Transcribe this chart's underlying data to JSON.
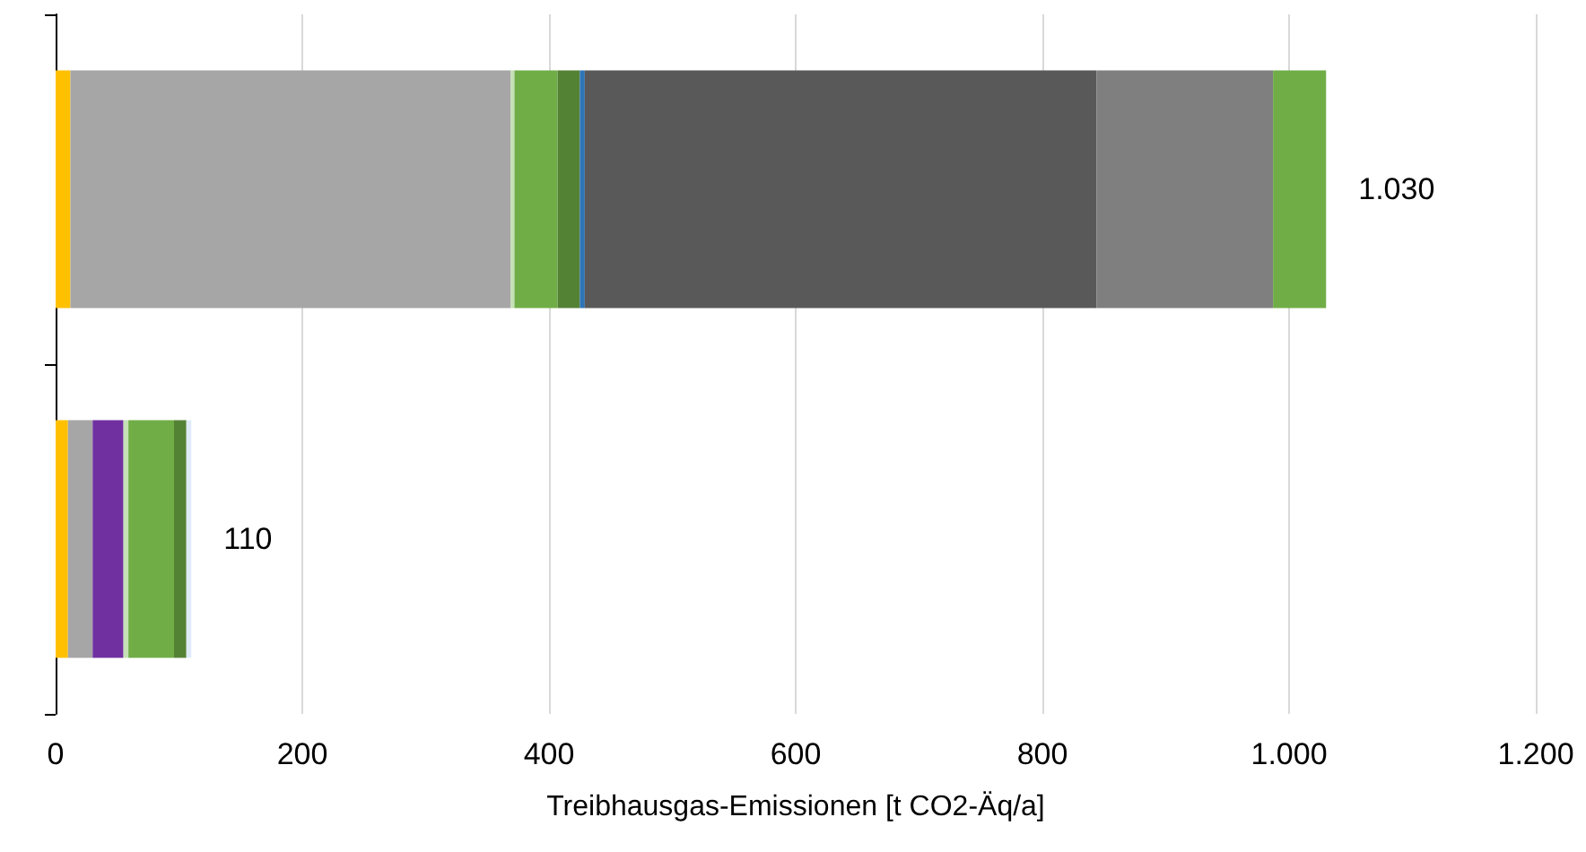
{
  "chart_data": {
    "type": "bar",
    "orientation": "horizontal",
    "stacked": true,
    "categories": [
      null,
      null
    ],
    "series": [
      {
        "color": "#ffc000",
        "values": [
          12,
          10
        ]
      },
      {
        "color": "#a6a6a6",
        "values": [
          357,
          20
        ]
      },
      {
        "color": "#7030a0",
        "values": [
          null,
          25
        ]
      },
      {
        "color": "#c5e0b4",
        "values": [
          3,
          4
        ]
      },
      {
        "color": "#70ad47",
        "values": [
          35,
          37
        ]
      },
      {
        "color": "#548235",
        "values": [
          18,
          10
        ]
      },
      {
        "color": "#2e75b6",
        "values": [
          4,
          null
        ]
      },
      {
        "color": "#deebf7",
        "values": [
          null,
          4
        ]
      },
      {
        "color": "#595959",
        "values": [
          415,
          null
        ]
      },
      {
        "color": "#7f7f7f",
        "values": [
          143,
          null
        ]
      },
      {
        "color": "#70ad47",
        "values": [
          43,
          null
        ]
      }
    ],
    "totals": [
      "1.030",
      "110"
    ],
    "xlim": [
      0,
      1200
    ],
    "xticks": [
      0,
      200,
      400,
      600,
      800,
      {
        "value": 1000,
        "label": "1.000"
      },
      {
        "value": 1200,
        "label": "1.200"
      }
    ],
    "xlabel": "Treibhausgas-Emissionen [t CO2-Äq/a]",
    "grid": "x"
  }
}
